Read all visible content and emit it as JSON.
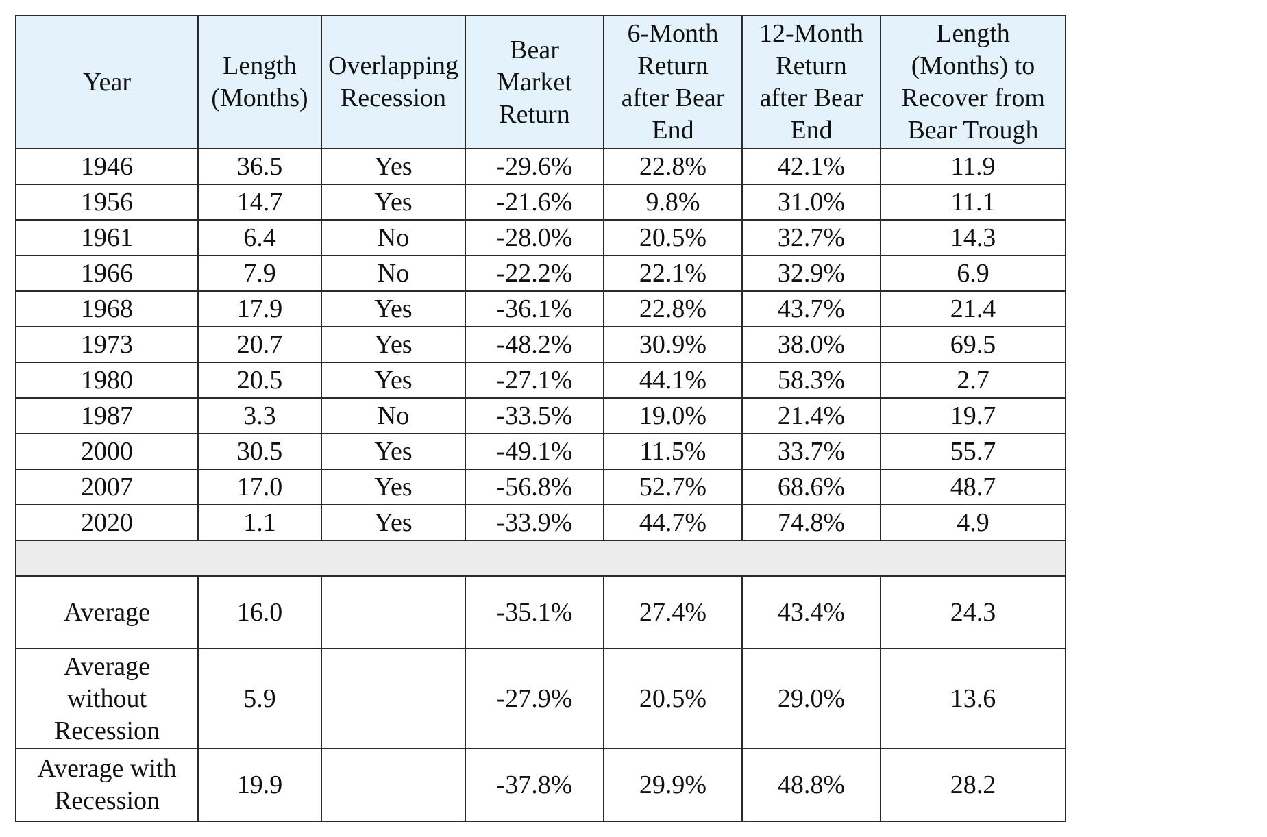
{
  "headers": [
    "Year",
    "Length\n(Months)",
    "Overlapping\nRecession",
    "Bear\nMarket\nReturn",
    "6-Month\nReturn\nafter Bear\nEnd",
    "12-Month\nReturn\nafter Bear\nEnd",
    "Length\n(Months) to\nRecover from\nBear Trough"
  ],
  "rows": [
    [
      "1946",
      "36.5",
      "Yes",
      "-29.6%",
      "22.8%",
      "42.1%",
      "11.9"
    ],
    [
      "1956",
      "14.7",
      "Yes",
      "-21.6%",
      "9.8%",
      "31.0%",
      "11.1"
    ],
    [
      "1961",
      "6.4",
      "No",
      "-28.0%",
      "20.5%",
      "32.7%",
      "14.3"
    ],
    [
      "1966",
      "7.9",
      "No",
      "-22.2%",
      "22.1%",
      "32.9%",
      "6.9"
    ],
    [
      "1968",
      "17.9",
      "Yes",
      "-36.1%",
      "22.8%",
      "43.7%",
      "21.4"
    ],
    [
      "1973",
      "20.7",
      "Yes",
      "-48.2%",
      "30.9%",
      "38.0%",
      "69.5"
    ],
    [
      "1980",
      "20.5",
      "Yes",
      "-27.1%",
      "44.1%",
      "58.3%",
      "2.7"
    ],
    [
      "1987",
      "3.3",
      "No",
      "-33.5%",
      "19.0%",
      "21.4%",
      "19.7"
    ],
    [
      "2000",
      "30.5",
      "Yes",
      "-49.1%",
      "11.5%",
      "33.7%",
      "55.7"
    ],
    [
      "2007",
      "17.0",
      "Yes",
      "-56.8%",
      "52.7%",
      "68.6%",
      "48.7"
    ],
    [
      "2020",
      "1.1",
      "Yes",
      "-33.9%",
      "44.7%",
      "74.8%",
      "4.9"
    ]
  ],
  "summary": [
    [
      "Average",
      "16.0",
      "",
      "-35.1%",
      "27.4%",
      "43.4%",
      "24.3"
    ],
    [
      "Average\nwithout\nRecession",
      "5.9",
      "",
      "-27.9%",
      "20.5%",
      "29.0%",
      "13.6"
    ],
    [
      "Average with\nRecession",
      "19.9",
      "",
      "-37.8%",
      "29.9%",
      "48.8%",
      "28.2"
    ]
  ],
  "colors": {
    "header_bg": "#e3f2fb",
    "spacer_bg": "#ececec",
    "border": "#2a2a2a"
  }
}
